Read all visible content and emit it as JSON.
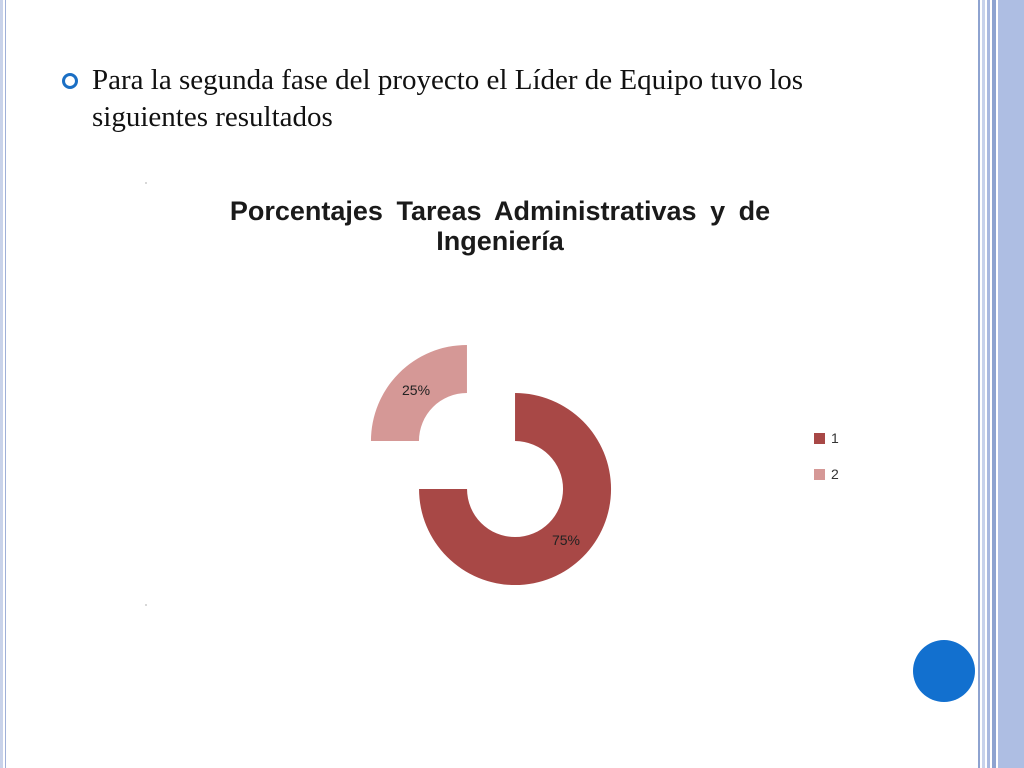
{
  "slide": {
    "bullet_text": "Para la segunda fase del proyecto el Líder de Equipo tuvo los siguientes resultados"
  },
  "colors": {
    "series_1": "#a84846",
    "series_2": "#d59896",
    "bullet": "#1b6fc4",
    "nav_button": "#1270cf"
  },
  "chart_data": {
    "type": "pie",
    "variant": "exploded-doughnut",
    "title": "Porcentajes Tareas Administrativas y de Ingeniería",
    "categories": [
      "1",
      "2"
    ],
    "values": [
      75,
      25
    ],
    "data_labels": [
      "75%",
      "25%"
    ],
    "legend": {
      "position": "right",
      "entries": [
        "1",
        "2"
      ]
    }
  },
  "icons": {
    "bullet": "ring-bullet-icon",
    "nav": "circle-nav-button"
  }
}
